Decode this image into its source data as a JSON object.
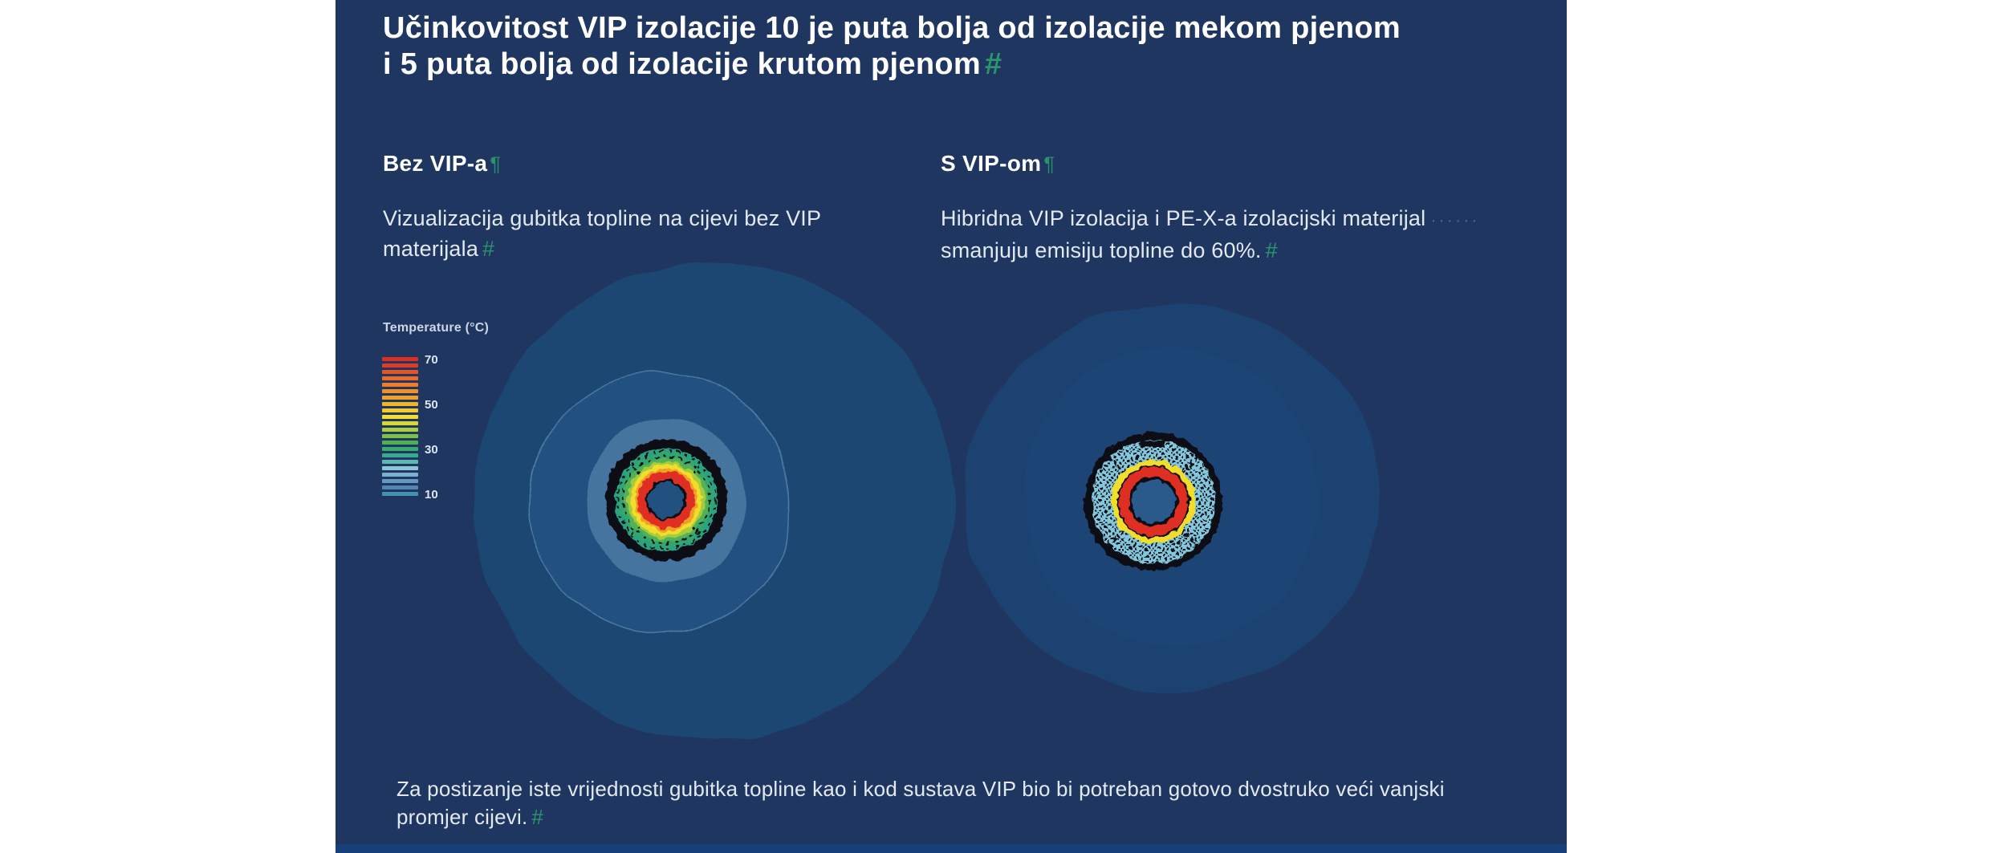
{
  "slide": {
    "title": {
      "lines": [
        "Učinkovitost VIP izolacije 10 je puta bolja od izolacije mekom pjenom",
        "i 5 puta bolja od izolacije krutom pjenom"
      ],
      "mark": "#"
    },
    "columns": {
      "left": {
        "heading": "Bez VIP-a",
        "heading_mark": "¶",
        "body_lines": [
          "Vizualizacija gubitka topline na cijevi bez VIP",
          "materijala"
        ],
        "body_mark": "#"
      },
      "right": {
        "heading": "S VIP-om",
        "heading_mark": "¶",
        "body_lines": [
          "Hibridna VIP izolacija i PE-X-a izolacijski materijal",
          "smanjuju emisiju topline do 60%."
        ],
        "trailing_dots": "······",
        "body_mark": "#"
      }
    },
    "legend": {
      "title": "Temperature (°C)",
      "ticks": [
        "70",
        "50",
        "30",
        "10"
      ],
      "colors": [
        "#da2f23",
        "#e23a25",
        "#e85326",
        "#ee6b27",
        "#f07d26",
        "#f29026",
        "#f2a327",
        "#f1b628",
        "#f2c92b",
        "#f4dc2e",
        "#d6d934",
        "#abce3e",
        "#7fc047",
        "#4fb153",
        "#3aab6e",
        "#36ab8d",
        "#5cb8ae",
        "#8dc4da",
        "#7aafd0",
        "#6699c2",
        "#5485b2",
        "#3e93b0"
      ]
    },
    "caption": {
      "lines": [
        "Za postizanje iste vrijednosti gubitka topline kao i kod sustava VIP bio bi potreban gotovo dvostruko veći vanjski",
        "promjer cijevi."
      ],
      "mark": "#"
    }
  },
  "colors": {
    "panel_bg": "#1f3660",
    "strip": "#17407a",
    "blob_left": "#1c4673",
    "blob_right": "#1d4371",
    "ghost": "#215181",
    "ghost2": "#1f4a79",
    "ghost_edge": "#7fb0cf",
    "steel": "#45759f",
    "heat_black": "#0e1118",
    "heat_teal": "#2aa381",
    "heat_green": "#35a76d",
    "heat_green2": "#52b254",
    "heat_yellowgreen": "#a6cc3c",
    "heat_yellow": "#f2de2c",
    "heat_orange": "#f0a026",
    "heat_red": "#df2d23",
    "core_left_center": "#24517f",
    "core_right_center": "#2a5a8c",
    "cyan": "#82c7dc",
    "mark_green": "#2ea06e",
    "text_white": "#ffffff",
    "text_body": "#e3e9f1",
    "legend_text": "#ccd6e6"
  }
}
